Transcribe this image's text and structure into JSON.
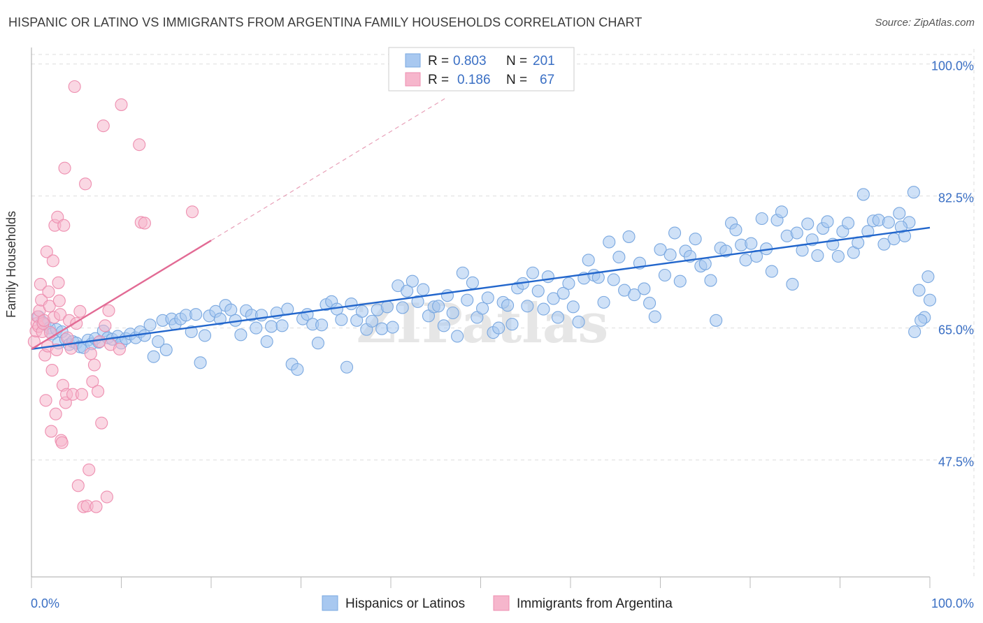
{
  "header": {
    "title": "HISPANIC OR LATINO VS IMMIGRANTS FROM ARGENTINA FAMILY HOUSEHOLDS CORRELATION CHART",
    "source": "Source: ZipAtlas.com"
  },
  "watermark": "ZIPatlas",
  "colors": {
    "blue_fill": "#a8c8f0",
    "blue_stroke": "#7aa8e0",
    "blue_line": "#2266cc",
    "pink_fill": "#f6b6cc",
    "pink_stroke": "#ee8fb0",
    "pink_line": "#e26a94",
    "tick_text": "#3a6fc4",
    "grid": "#dddddd"
  },
  "legend_top": {
    "rows": [
      {
        "r_label": "R =",
        "r_value": "0.803",
        "n_label": "N =",
        "n_value": "201",
        "series": "blue"
      },
      {
        "r_label": "R =",
        "r_value": "0.186",
        "n_label": "N =",
        "n_value": "67",
        "series": "pink"
      }
    ]
  },
  "legend_bottom": [
    {
      "label": "Hispanics or Latinos",
      "series": "blue"
    },
    {
      "label": "Immigrants from Argentina",
      "series": "pink"
    }
  ],
  "chart_data": {
    "type": "scatter",
    "title": "HISPANIC OR LATINO VS IMMIGRANTS FROM ARGENTINA FAMILY HOUSEHOLDS CORRELATION CHART",
    "xlabel": "",
    "ylabel": "Family Households",
    "xlim": [
      0,
      100
    ],
    "ylim": [
      32.0,
      102.0
    ],
    "x_tick_labels": [
      "0.0%",
      "100.0%"
    ],
    "y_ticks": [
      47.5,
      65.0,
      82.5,
      100.0
    ],
    "y_tick_labels": [
      "47.5%",
      "65.0%",
      "82.5%",
      "100.0%"
    ],
    "series": [
      {
        "name": "Hispanics or Latinos",
        "color": "blue",
        "trend": {
          "x0": 0,
          "y0": 62.2,
          "x1": 100,
          "y1": 78.3
        },
        "points": [
          [
            0.8,
            66.5
          ],
          [
            1.2,
            65.8
          ],
          [
            1.5,
            65.5
          ],
          [
            2.0,
            65.0
          ],
          [
            2.3,
            64.2
          ],
          [
            2.8,
            64.8
          ],
          [
            3.0,
            63.0
          ],
          [
            3.4,
            64.5
          ],
          [
            3.8,
            63.5
          ],
          [
            4.2,
            62.8
          ],
          [
            4.6,
            63.2
          ],
          [
            5.0,
            63.0
          ],
          [
            5.4,
            62.5
          ],
          [
            5.8,
            62.4
          ],
          [
            6.3,
            63.4
          ],
          [
            6.7,
            62.9
          ],
          [
            7.1,
            63.6
          ],
          [
            7.5,
            63.1
          ],
          [
            8.0,
            64.6
          ],
          [
            8.5,
            63.7
          ],
          [
            9.0,
            63.5
          ],
          [
            9.6,
            63.9
          ],
          [
            10.0,
            63.0
          ],
          [
            10.5,
            63.6
          ],
          [
            11.0,
            64.2
          ],
          [
            11.6,
            63.7
          ],
          [
            12.1,
            64.5
          ],
          [
            12.6,
            64.0
          ],
          [
            13.2,
            65.4
          ],
          [
            13.6,
            61.2
          ],
          [
            14.1,
            63.2
          ],
          [
            14.6,
            66.0
          ],
          [
            15.0,
            62.1
          ],
          [
            15.6,
            66.2
          ],
          [
            16.0,
            65.5
          ],
          [
            16.6,
            66.2
          ],
          [
            17.2,
            66.7
          ],
          [
            17.8,
            64.5
          ],
          [
            18.3,
            66.8
          ],
          [
            18.8,
            60.4
          ],
          [
            19.3,
            64.0
          ],
          [
            19.8,
            66.6
          ],
          [
            20.5,
            67.2
          ],
          [
            21.0,
            66.2
          ],
          [
            21.6,
            68.0
          ],
          [
            22.2,
            67.4
          ],
          [
            22.7,
            66.0
          ],
          [
            23.3,
            64.1
          ],
          [
            23.9,
            67.3
          ],
          [
            24.5,
            66.7
          ],
          [
            25.0,
            65.0
          ],
          [
            25.6,
            66.7
          ],
          [
            26.2,
            63.2
          ],
          [
            26.7,
            65.2
          ],
          [
            27.3,
            67.0
          ],
          [
            27.9,
            65.3
          ],
          [
            28.5,
            67.5
          ],
          [
            29.0,
            60.2
          ],
          [
            29.6,
            59.5
          ],
          [
            30.2,
            66.2
          ],
          [
            30.7,
            66.8
          ],
          [
            31.3,
            65.5
          ],
          [
            31.9,
            63.0
          ],
          [
            32.3,
            65.4
          ],
          [
            32.8,
            68.1
          ],
          [
            33.4,
            68.5
          ],
          [
            34.0,
            67.5
          ],
          [
            34.5,
            66.1
          ],
          [
            35.1,
            59.8
          ],
          [
            35.6,
            68.2
          ],
          [
            36.2,
            66.0
          ],
          [
            36.8,
            67.2
          ],
          [
            37.3,
            64.8
          ],
          [
            37.9,
            65.9
          ],
          [
            38.5,
            67.4
          ],
          [
            39.0,
            64.9
          ],
          [
            39.6,
            67.8
          ],
          [
            40.2,
            65.1
          ],
          [
            40.8,
            70.6
          ],
          [
            41.3,
            67.7
          ],
          [
            41.8,
            69.9
          ],
          [
            42.4,
            71.2
          ],
          [
            43.0,
            68.5
          ],
          [
            43.6,
            70.1
          ],
          [
            44.2,
            66.6
          ],
          [
            44.8,
            67.8
          ],
          [
            45.3,
            67.9
          ],
          [
            45.9,
            65.3
          ],
          [
            46.3,
            69.3
          ],
          [
            46.9,
            67.0
          ],
          [
            47.4,
            63.9
          ],
          [
            48.0,
            72.3
          ],
          [
            48.5,
            68.7
          ],
          [
            49.1,
            71.0
          ],
          [
            49.6,
            66.4
          ],
          [
            50.2,
            67.6
          ],
          [
            50.8,
            69.0
          ],
          [
            51.4,
            64.4
          ],
          [
            52.0,
            65.0
          ],
          [
            52.5,
            68.4
          ],
          [
            53.0,
            68.0
          ],
          [
            53.5,
            65.5
          ],
          [
            54.1,
            70.3
          ],
          [
            54.7,
            70.9
          ],
          [
            55.2,
            67.9
          ],
          [
            55.8,
            72.3
          ],
          [
            56.4,
            69.9
          ],
          [
            57.0,
            67.5
          ],
          [
            57.5,
            71.8
          ],
          [
            58.1,
            68.9
          ],
          [
            58.6,
            66.4
          ],
          [
            59.2,
            69.6
          ],
          [
            59.8,
            70.9
          ],
          [
            60.3,
            67.8
          ],
          [
            60.9,
            65.8
          ],
          [
            61.5,
            71.6
          ],
          [
            62.0,
            74.0
          ],
          [
            62.6,
            72.0
          ],
          [
            63.1,
            71.7
          ],
          [
            63.7,
            68.4
          ],
          [
            64.3,
            76.4
          ],
          [
            64.8,
            71.4
          ],
          [
            65.4,
            74.4
          ],
          [
            66.0,
            70.0
          ],
          [
            66.5,
            77.1
          ],
          [
            67.1,
            69.4
          ],
          [
            67.7,
            73.6
          ],
          [
            68.2,
            70.2
          ],
          [
            68.8,
            68.3
          ],
          [
            69.4,
            66.5
          ],
          [
            70.0,
            75.4
          ],
          [
            70.5,
            72.0
          ],
          [
            71.1,
            74.7
          ],
          [
            71.6,
            77.6
          ],
          [
            72.2,
            71.2
          ],
          [
            72.8,
            75.2
          ],
          [
            73.3,
            74.5
          ],
          [
            73.9,
            76.8
          ],
          [
            74.5,
            73.2
          ],
          [
            75.0,
            73.5
          ],
          [
            75.6,
            71.3
          ],
          [
            76.2,
            66.0
          ],
          [
            76.7,
            75.6
          ],
          [
            77.3,
            75.2
          ],
          [
            77.9,
            78.9
          ],
          [
            78.4,
            78.0
          ],
          [
            79.0,
            76.0
          ],
          [
            79.5,
            74.0
          ],
          [
            80.1,
            76.2
          ],
          [
            80.7,
            74.5
          ],
          [
            81.3,
            79.5
          ],
          [
            81.8,
            75.5
          ],
          [
            82.4,
            72.5
          ],
          [
            83.0,
            79.3
          ],
          [
            83.5,
            80.4
          ],
          [
            84.1,
            77.2
          ],
          [
            84.7,
            70.8
          ],
          [
            85.2,
            77.6
          ],
          [
            85.8,
            75.3
          ],
          [
            86.4,
            78.8
          ],
          [
            86.9,
            76.7
          ],
          [
            87.5,
            74.6
          ],
          [
            88.1,
            78.2
          ],
          [
            88.6,
            79.1
          ],
          [
            89.2,
            76.1
          ],
          [
            89.8,
            74.5
          ],
          [
            90.3,
            77.8
          ],
          [
            90.9,
            78.9
          ],
          [
            91.5,
            75.0
          ],
          [
            92.0,
            76.3
          ],
          [
            92.6,
            82.7
          ],
          [
            93.1,
            77.8
          ],
          [
            93.7,
            79.2
          ],
          [
            94.3,
            79.3
          ],
          [
            94.9,
            76.1
          ],
          [
            95.4,
            79.0
          ],
          [
            96.0,
            76.8
          ],
          [
            96.6,
            80.2
          ],
          [
            97.2,
            77.2
          ],
          [
            97.7,
            79.0
          ],
          [
            98.3,
            64.5
          ],
          [
            98.8,
            70.0
          ],
          [
            99.4,
            66.4
          ],
          [
            99.8,
            71.8
          ],
          [
            100.0,
            68.7
          ],
          [
            99.0,
            66.0
          ],
          [
            98.2,
            83.0
          ],
          [
            96.8,
            78.4
          ]
        ]
      },
      {
        "name": "Immigrants from Argentina",
        "color": "pink",
        "trend": {
          "x0": 0,
          "y0": 62.2,
          "x1": 20,
          "y1": 76.6
        },
        "trend_extended": {
          "x0": 20,
          "y0": 76.6,
          "x1": 46,
          "y1": 95.4
        },
        "points": [
          [
            0.3,
            63.2
          ],
          [
            0.5,
            64.6
          ],
          [
            0.6,
            65.6
          ],
          [
            0.7,
            66.5
          ],
          [
            0.8,
            65.2
          ],
          [
            0.9,
            67.3
          ],
          [
            1.0,
            70.8
          ],
          [
            1.1,
            68.7
          ],
          [
            1.2,
            64.5
          ],
          [
            1.3,
            65.6
          ],
          [
            1.4,
            66.0
          ],
          [
            1.5,
            61.4
          ],
          [
            1.6,
            55.4
          ],
          [
            1.7,
            75.1
          ],
          [
            1.8,
            62.6
          ],
          [
            1.9,
            69.8
          ],
          [
            2.0,
            67.9
          ],
          [
            2.1,
            64.4
          ],
          [
            2.2,
            51.3
          ],
          [
            2.3,
            59.4
          ],
          [
            2.4,
            73.9
          ],
          [
            2.5,
            66.4
          ],
          [
            2.6,
            78.6
          ],
          [
            2.7,
            53.6
          ],
          [
            2.8,
            62.1
          ],
          [
            2.9,
            79.7
          ],
          [
            3.0,
            71.0
          ],
          [
            3.1,
            68.6
          ],
          [
            3.2,
            66.8
          ],
          [
            3.3,
            50.1
          ],
          [
            3.4,
            49.8
          ],
          [
            3.5,
            57.4
          ],
          [
            3.6,
            78.6
          ],
          [
            3.7,
            86.2
          ],
          [
            3.8,
            55.1
          ],
          [
            3.9,
            56.2
          ],
          [
            4.0,
            63.7
          ],
          [
            4.2,
            66.0
          ],
          [
            4.4,
            62.3
          ],
          [
            4.6,
            56.2
          ],
          [
            4.8,
            97.0
          ],
          [
            5.0,
            65.6
          ],
          [
            5.2,
            44.1
          ],
          [
            5.4,
            67.2
          ],
          [
            5.6,
            56.2
          ],
          [
            5.8,
            41.3
          ],
          [
            6.0,
            84.1
          ],
          [
            6.2,
            41.4
          ],
          [
            6.4,
            46.2
          ],
          [
            6.6,
            61.6
          ],
          [
            6.8,
            57.9
          ],
          [
            7.0,
            60.1
          ],
          [
            7.2,
            41.3
          ],
          [
            7.4,
            56.6
          ],
          [
            7.6,
            63.2
          ],
          [
            7.8,
            52.4
          ],
          [
            8.0,
            91.8
          ],
          [
            8.2,
            65.3
          ],
          [
            8.4,
            42.6
          ],
          [
            8.6,
            67.3
          ],
          [
            8.8,
            62.8
          ],
          [
            9.8,
            62.2
          ],
          [
            10.0,
            94.6
          ],
          [
            12.0,
            89.3
          ],
          [
            12.2,
            79.0
          ],
          [
            12.6,
            78.9
          ],
          [
            17.9,
            80.4
          ]
        ]
      }
    ]
  }
}
